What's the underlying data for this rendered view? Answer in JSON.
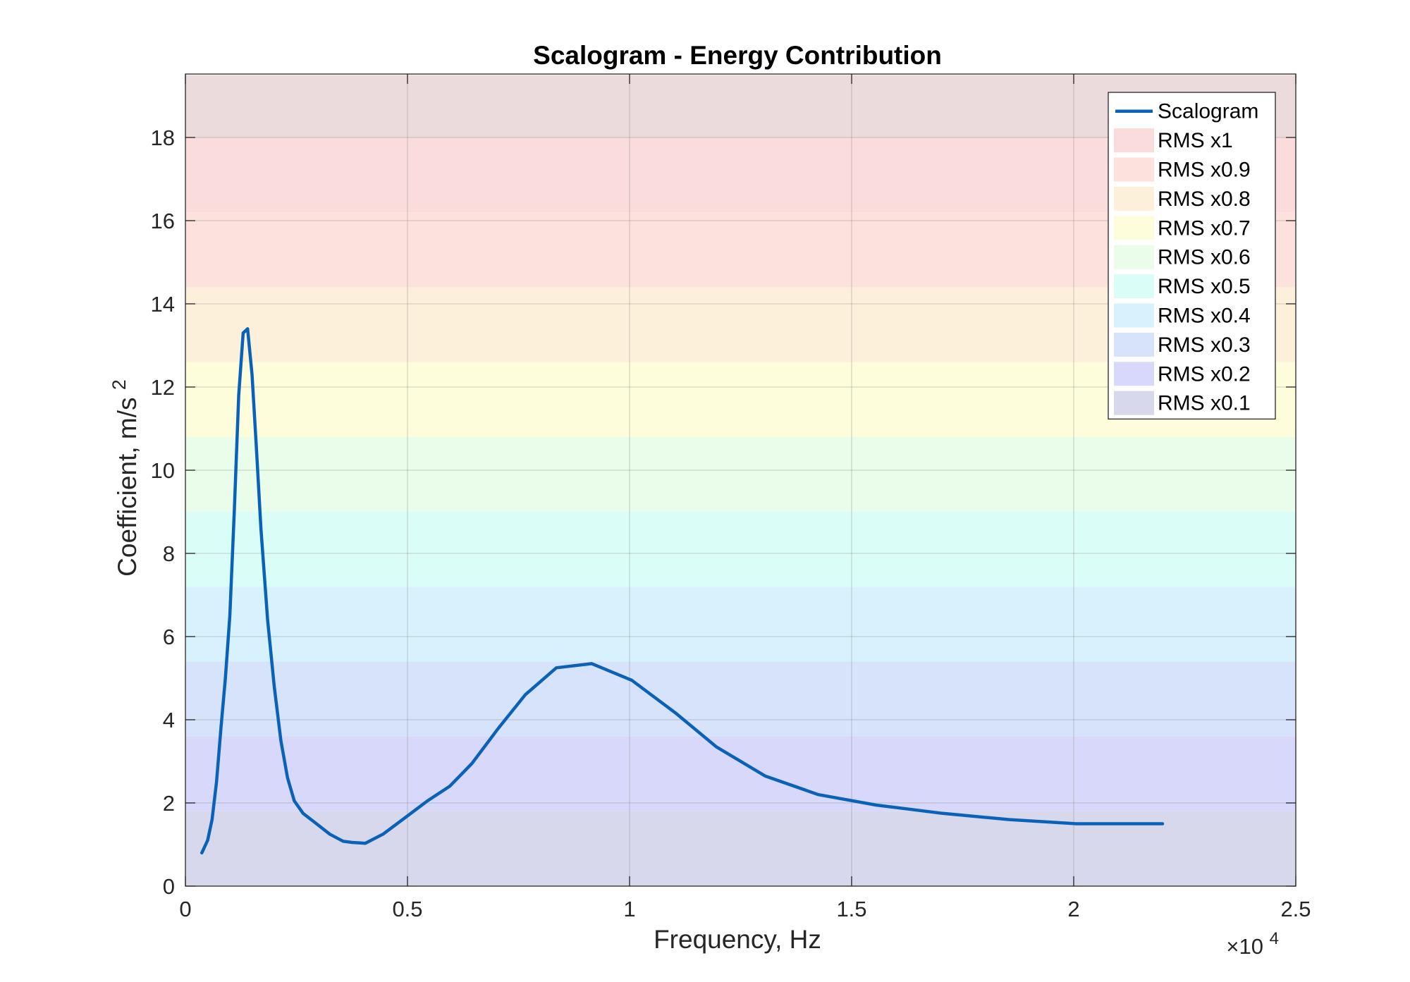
{
  "chart_data": {
    "type": "line",
    "title": "Scalogram - Energy Contribution",
    "xlabel": "Frequency, Hz",
    "ylabel": "Coefficient, m/s",
    "ylabel_superscript": "2",
    "x_exponent_prefix": "×10",
    "x_exponent": "4",
    "xlim": [
      0,
      25000
    ],
    "ylim": [
      0,
      19.5
    ],
    "x_ticks": [
      0,
      5000,
      10000,
      15000,
      20000,
      25000
    ],
    "x_tick_labels": [
      "0",
      "0.5",
      "1",
      "1.5",
      "2",
      "2.5"
    ],
    "y_ticks": [
      0,
      2,
      4,
      6,
      8,
      10,
      12,
      14,
      16,
      18
    ],
    "y_tick_labels": [
      "0",
      "2",
      "4",
      "6",
      "8",
      "10",
      "12",
      "14",
      "16",
      "18"
    ],
    "grid": true,
    "legend_position": "top-right",
    "series": [
      {
        "name": "Scalogram",
        "color": "#0a62b8",
        "x": [
          370,
          500,
          600,
          700,
          800,
          900,
          1000,
          1100,
          1200,
          1300,
          1400,
          1500,
          1600,
          1700,
          1850,
          2000,
          2150,
          2300,
          2450,
          2650,
          2950,
          3250,
          3550,
          3750,
          4050,
          4450,
          4950,
          5450,
          5950,
          6450,
          7050,
          7650,
          8350,
          9150,
          10050,
          11050,
          11950,
          13050,
          14250,
          15550,
          17050,
          18550,
          20050,
          22000
        ],
        "y": [
          0.8,
          1.1,
          1.6,
          2.5,
          3.8,
          5.0,
          6.5,
          9.0,
          11.8,
          13.3,
          13.4,
          12.3,
          10.5,
          8.6,
          6.4,
          4.8,
          3.5,
          2.6,
          2.05,
          1.75,
          1.5,
          1.25,
          1.08,
          1.05,
          1.03,
          1.25,
          1.65,
          2.05,
          2.4,
          2.95,
          3.8,
          4.6,
          5.25,
          5.35,
          4.95,
          4.15,
          3.35,
          2.65,
          2.2,
          1.95,
          1.75,
          1.6,
          1.5,
          1.5
        ]
      }
    ],
    "bands": [
      {
        "name": "RMS x0.1",
        "from": 0,
        "to": 1.8,
        "color": "#d7d8ec"
      },
      {
        "name": "RMS x0.2",
        "from": 1.8,
        "to": 3.6,
        "color": "#d8d8fa"
      },
      {
        "name": "RMS x0.3",
        "from": 3.6,
        "to": 5.4,
        "color": "#d7e2fb"
      },
      {
        "name": "RMS x0.4",
        "from": 5.4,
        "to": 7.2,
        "color": "#d7f2fc"
      },
      {
        "name": "RMS x0.5",
        "from": 7.2,
        "to": 9.0,
        "color": "#dbfdf8"
      },
      {
        "name": "RMS x0.6",
        "from": 9.0,
        "to": 10.8,
        "color": "#eafcea"
      },
      {
        "name": "RMS x0.7",
        "from": 10.8,
        "to": 12.6,
        "color": "#fdfddb"
      },
      {
        "name": "RMS x0.8",
        "from": 12.6,
        "to": 14.4,
        "color": "#fdf0db"
      },
      {
        "name": "RMS x0.9",
        "from": 14.4,
        "to": 16.2,
        "color": "#fde1dc"
      },
      {
        "name": "RMS x1",
        "from": 16.2,
        "to": 18.0,
        "color": "#f9dcdb"
      },
      {
        "name": "",
        "from": 18.0,
        "to": 19.5,
        "color": "#ecdbdc"
      }
    ],
    "legend_entries": [
      "Scalogram",
      "RMS x1",
      "RMS x0.9",
      "RMS x0.8",
      "RMS x0.7",
      "RMS x0.6",
      "RMS x0.5",
      "RMS x0.4",
      "RMS x0.3",
      "RMS x0.2",
      "RMS x0.1"
    ]
  }
}
